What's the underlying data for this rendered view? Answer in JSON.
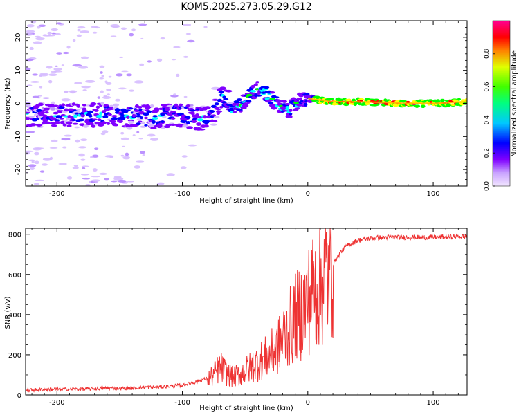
{
  "title": "KOM5.2025.273.05.29.G12",
  "chart_data": [
    {
      "type": "heatmap",
      "title": "KOM5.2025.273.05.29.G12",
      "xlabel": "Height of straight line (km)",
      "ylabel": "Frequency (Hz)",
      "xlim": [
        -225,
        127
      ],
      "ylim": [
        -25,
        25
      ],
      "xticks": [
        -200,
        -100,
        0,
        100
      ],
      "yticks": [
        -20,
        -10,
        0,
        10,
        20
      ],
      "description_of_ridge": "Doppler frequency ridge of signal vs height",
      "ridge": {
        "x": [
          -225,
          -200,
          -180,
          -160,
          -140,
          -120,
          -105,
          -95,
          -85,
          -75,
          -70,
          -65,
          -60,
          -55,
          -50,
          -45,
          -40,
          -35,
          -30,
          -25,
          -20,
          -15,
          -10,
          -5,
          0,
          10,
          20,
          40,
          60,
          80,
          100,
          127
        ],
        "y": [
          -4,
          -3.5,
          -3.5,
          -3.5,
          -4,
          -4,
          -3.5,
          -4,
          -4.5,
          -3,
          1,
          2,
          -2,
          -1,
          1,
          3,
          4.5,
          3.5,
          2,
          0,
          -1,
          -2.5,
          0,
          1,
          1.5,
          1,
          0.5,
          0.5,
          0.3,
          0,
          0,
          0.5
        ]
      },
      "colorbar": {
        "label": "Normalized spectral amplitude",
        "ticks": [
          0.0,
          0.2,
          0.4,
          0.6,
          0.8
        ],
        "tick_labels": [
          "0.0",
          "0.2",
          "0.4",
          "0.6",
          "0.8"
        ],
        "range": [
          0,
          1
        ],
        "colormap": [
          "#d4b8ff",
          "#8000ff",
          "#0000ff",
          "#00ffff",
          "#00ff00",
          "#ffff00",
          "#ff0000",
          "#ff0080"
        ]
      }
    },
    {
      "type": "line",
      "xlabel": "Height of straight line (km)",
      "ylabel": "SNR (v/v)",
      "xlim": [
        -225,
        127
      ],
      "ylim": [
        0,
        830
      ],
      "xticks": [
        -200,
        -100,
        0,
        100
      ],
      "yticks": [
        0,
        200,
        400,
        600,
        800
      ],
      "series": [
        {
          "name": "SNR",
          "color": "#ee3333",
          "x": [
            -225,
            -200,
            -180,
            -160,
            -140,
            -130,
            -120,
            -110,
            -100,
            -90,
            -80,
            -75,
            -70,
            -65,
            -60,
            -55,
            -50,
            -45,
            -40,
            -35,
            -30,
            -25,
            -20,
            -15,
            -10,
            -5,
            0,
            5,
            10,
            15,
            20,
            25,
            30,
            40,
            50,
            60,
            80,
            100,
            127
          ],
          "y": [
            20,
            25,
            25,
            30,
            30,
            35,
            35,
            40,
            45,
            60,
            80,
            100,
            140,
            110,
            90,
            100,
            120,
            140,
            160,
            180,
            200,
            230,
            280,
            330,
            380,
            420,
            470,
            520,
            560,
            600,
            650,
            700,
            740,
            770,
            780,
            785,
            785,
            785,
            790
          ]
        }
      ]
    }
  ]
}
